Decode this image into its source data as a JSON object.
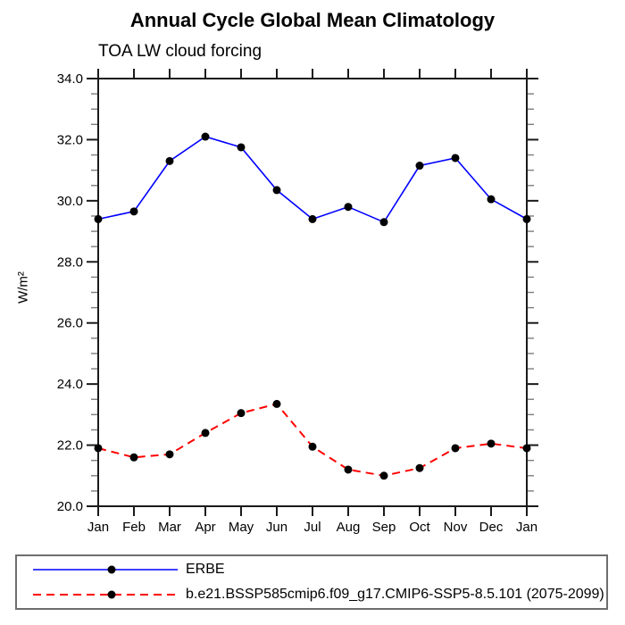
{
  "title": "Annual Cycle Global Mean Climatology",
  "chart_data": {
    "type": "line",
    "title": "Annual Cycle Global Mean Climatology",
    "subtitle": "TOA LW cloud forcing",
    "ylabel": "W/m²",
    "xlabel": "",
    "ylim": [
      20.0,
      34.0
    ],
    "ytick_step": 2.0,
    "yminor_step": 0.5,
    "ytick_labels": [
      "20.0",
      "22.0",
      "24.0",
      "26.0",
      "28.0",
      "30.0",
      "32.0",
      "34.0"
    ],
    "categories": [
      "Jan",
      "Feb",
      "Mar",
      "Apr",
      "May",
      "Jun",
      "Jul",
      "Aug",
      "Sep",
      "Oct",
      "Nov",
      "Dec",
      "Jan"
    ],
    "grid": false,
    "legend_position": "bottom-left-box",
    "series": [
      {
        "name": "ERBE",
        "color": "#0000ff",
        "line_style": "solid",
        "marker": "filled-circle",
        "marker_color": "#000000",
        "values": [
          29.4,
          29.65,
          31.3,
          32.1,
          31.75,
          30.35,
          29.4,
          29.8,
          29.3,
          31.15,
          31.4,
          30.05,
          29.4
        ]
      },
      {
        "name": "b.e21.BSSP585cmip6.f09_g17.CMIP6-SSP5-8.5.101 (2075-2099)",
        "color": "#ff0000",
        "line_style": "dashed",
        "marker": "filled-circle",
        "marker_color": "#000000",
        "values": [
          21.9,
          21.6,
          21.7,
          22.4,
          23.05,
          23.35,
          21.95,
          21.2,
          21.0,
          21.25,
          21.9,
          22.05,
          21.9
        ]
      }
    ]
  },
  "style": {
    "background": "#ffffff",
    "frame_color": "#1a1a1a",
    "minor_tick_color": "#7d7d7d",
    "text_color": "#000000",
    "legend_border_color": "#6e6e6e"
  }
}
